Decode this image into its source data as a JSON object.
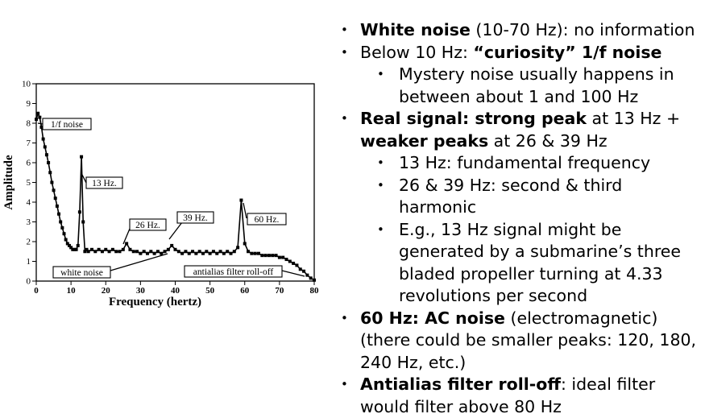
{
  "chart_data": {
    "type": "line",
    "xlabel": "Frequency (hertz)",
    "ylabel": "Amplitude",
    "xlim": [
      0,
      80
    ],
    "ylim": [
      0,
      10
    ],
    "xticks": [
      0,
      10,
      20,
      30,
      40,
      50,
      60,
      70,
      80
    ],
    "yticks": [
      0,
      1,
      2,
      3,
      4,
      5,
      6,
      7,
      8,
      9,
      10
    ],
    "grid": false,
    "series": [
      {
        "x": [
          0,
          0.5,
          1,
          1.5,
          2,
          2.5,
          3,
          3.5,
          4,
          4.5,
          5,
          5.5,
          6,
          6.5,
          7,
          7.5,
          8,
          8.5,
          9,
          9.5,
          10,
          10.5,
          11,
          11.5,
          12,
          12.5,
          13,
          13.5,
          14,
          14.5,
          15,
          16,
          17,
          18,
          19,
          20,
          21,
          22,
          23,
          24,
          25,
          26,
          27,
          28,
          29,
          30,
          31,
          32,
          33,
          34,
          35,
          36,
          37,
          38,
          39,
          40,
          41,
          42,
          43,
          44,
          45,
          46,
          47,
          48,
          49,
          50,
          51,
          52,
          53,
          54,
          55,
          56,
          57,
          58,
          59,
          60,
          61,
          62,
          63,
          64,
          65,
          66,
          67,
          68,
          69,
          70,
          71,
          72,
          73,
          74,
          75,
          76,
          77,
          78,
          79,
          80
        ],
        "y": [
          8.2,
          8.5,
          8.3,
          7.8,
          7.2,
          6.8,
          6.4,
          6.0,
          5.5,
          5.0,
          4.6,
          4.2,
          3.8,
          3.4,
          3.0,
          2.7,
          2.4,
          2.1,
          1.9,
          1.8,
          1.7,
          1.6,
          1.6,
          1.6,
          1.8,
          3.5,
          6.3,
          3.0,
          1.5,
          1.6,
          1.5,
          1.6,
          1.5,
          1.6,
          1.5,
          1.6,
          1.5,
          1.6,
          1.5,
          1.5,
          1.6,
          1.9,
          1.6,
          1.5,
          1.5,
          1.4,
          1.5,
          1.4,
          1.5,
          1.4,
          1.5,
          1.4,
          1.5,
          1.6,
          1.8,
          1.6,
          1.5,
          1.4,
          1.5,
          1.4,
          1.5,
          1.4,
          1.5,
          1.4,
          1.5,
          1.4,
          1.5,
          1.4,
          1.5,
          1.4,
          1.5,
          1.4,
          1.5,
          1.7,
          4.1,
          1.9,
          1.5,
          1.4,
          1.4,
          1.4,
          1.3,
          1.3,
          1.3,
          1.3,
          1.3,
          1.2,
          1.2,
          1.1,
          1.0,
          0.9,
          0.8,
          0.6,
          0.5,
          0.3,
          0.15,
          0.05
        ]
      }
    ],
    "annotations": [
      {
        "label": "1/f noise",
        "x": 1,
        "y": 8.2
      },
      {
        "label": "13 Hz.",
        "x": 13,
        "y": 6.3
      },
      {
        "label": "26 Hz.",
        "x": 26,
        "y": 1.9
      },
      {
        "label": "39 Hz.",
        "x": 39,
        "y": 1.8
      },
      {
        "label": "60 Hz.",
        "x": 60,
        "y": 4.1
      },
      {
        "label": "white noise",
        "x": 40,
        "y": 1.3
      },
      {
        "label": "antialias filter roll-off",
        "x": 74,
        "y": 0.5
      }
    ]
  },
  "bullets": [
    {
      "level": 1,
      "runs": [
        {
          "t": "White noise",
          "b": true
        },
        {
          "t": " (10-70 Hz): no information",
          "b": false
        }
      ]
    },
    {
      "level": 1,
      "runs": [
        {
          "t": "Below 10 Hz: ",
          "b": false
        },
        {
          "t": "“curiosity” 1/f noise",
          "b": true
        }
      ]
    },
    {
      "level": 2,
      "runs": [
        {
          "t": "Mystery noise usually happens in between about 1 and 100 Hz",
          "b": false
        }
      ]
    },
    {
      "level": 1,
      "runs": [
        {
          "t": "Real signal: strong peak",
          "b": true
        },
        {
          "t": " at 13 Hz + ",
          "b": false
        },
        {
          "t": "weaker peaks",
          "b": true
        },
        {
          "t": " at 26 & 39 Hz",
          "b": false
        }
      ]
    },
    {
      "level": 2,
      "runs": [
        {
          "t": "13 Hz: fundamental frequency",
          "b": false
        }
      ]
    },
    {
      "level": 2,
      "runs": [
        {
          "t": "26 & 39 Hz: second & third harmonic",
          "b": false
        }
      ]
    },
    {
      "level": 2,
      "runs": [
        {
          "t": "E.g., 13 Hz signal might be generated by a submarine’s three bladed propeller turning at 4.33 revolutions per second",
          "b": false
        }
      ]
    },
    {
      "level": 1,
      "runs": [
        {
          "t": "60 Hz: AC noise",
          "b": true
        },
        {
          "t": " (electromagnetic) (there could be smaller peaks: 120, 180, 240 Hz, etc.)",
          "b": false
        }
      ]
    },
    {
      "level": 1,
      "runs": [
        {
          "t": "Antialias filter roll-off",
          "b": true
        },
        {
          "t": ": ideal filter would filter above 80 Hz",
          "b": false
        }
      ]
    }
  ]
}
